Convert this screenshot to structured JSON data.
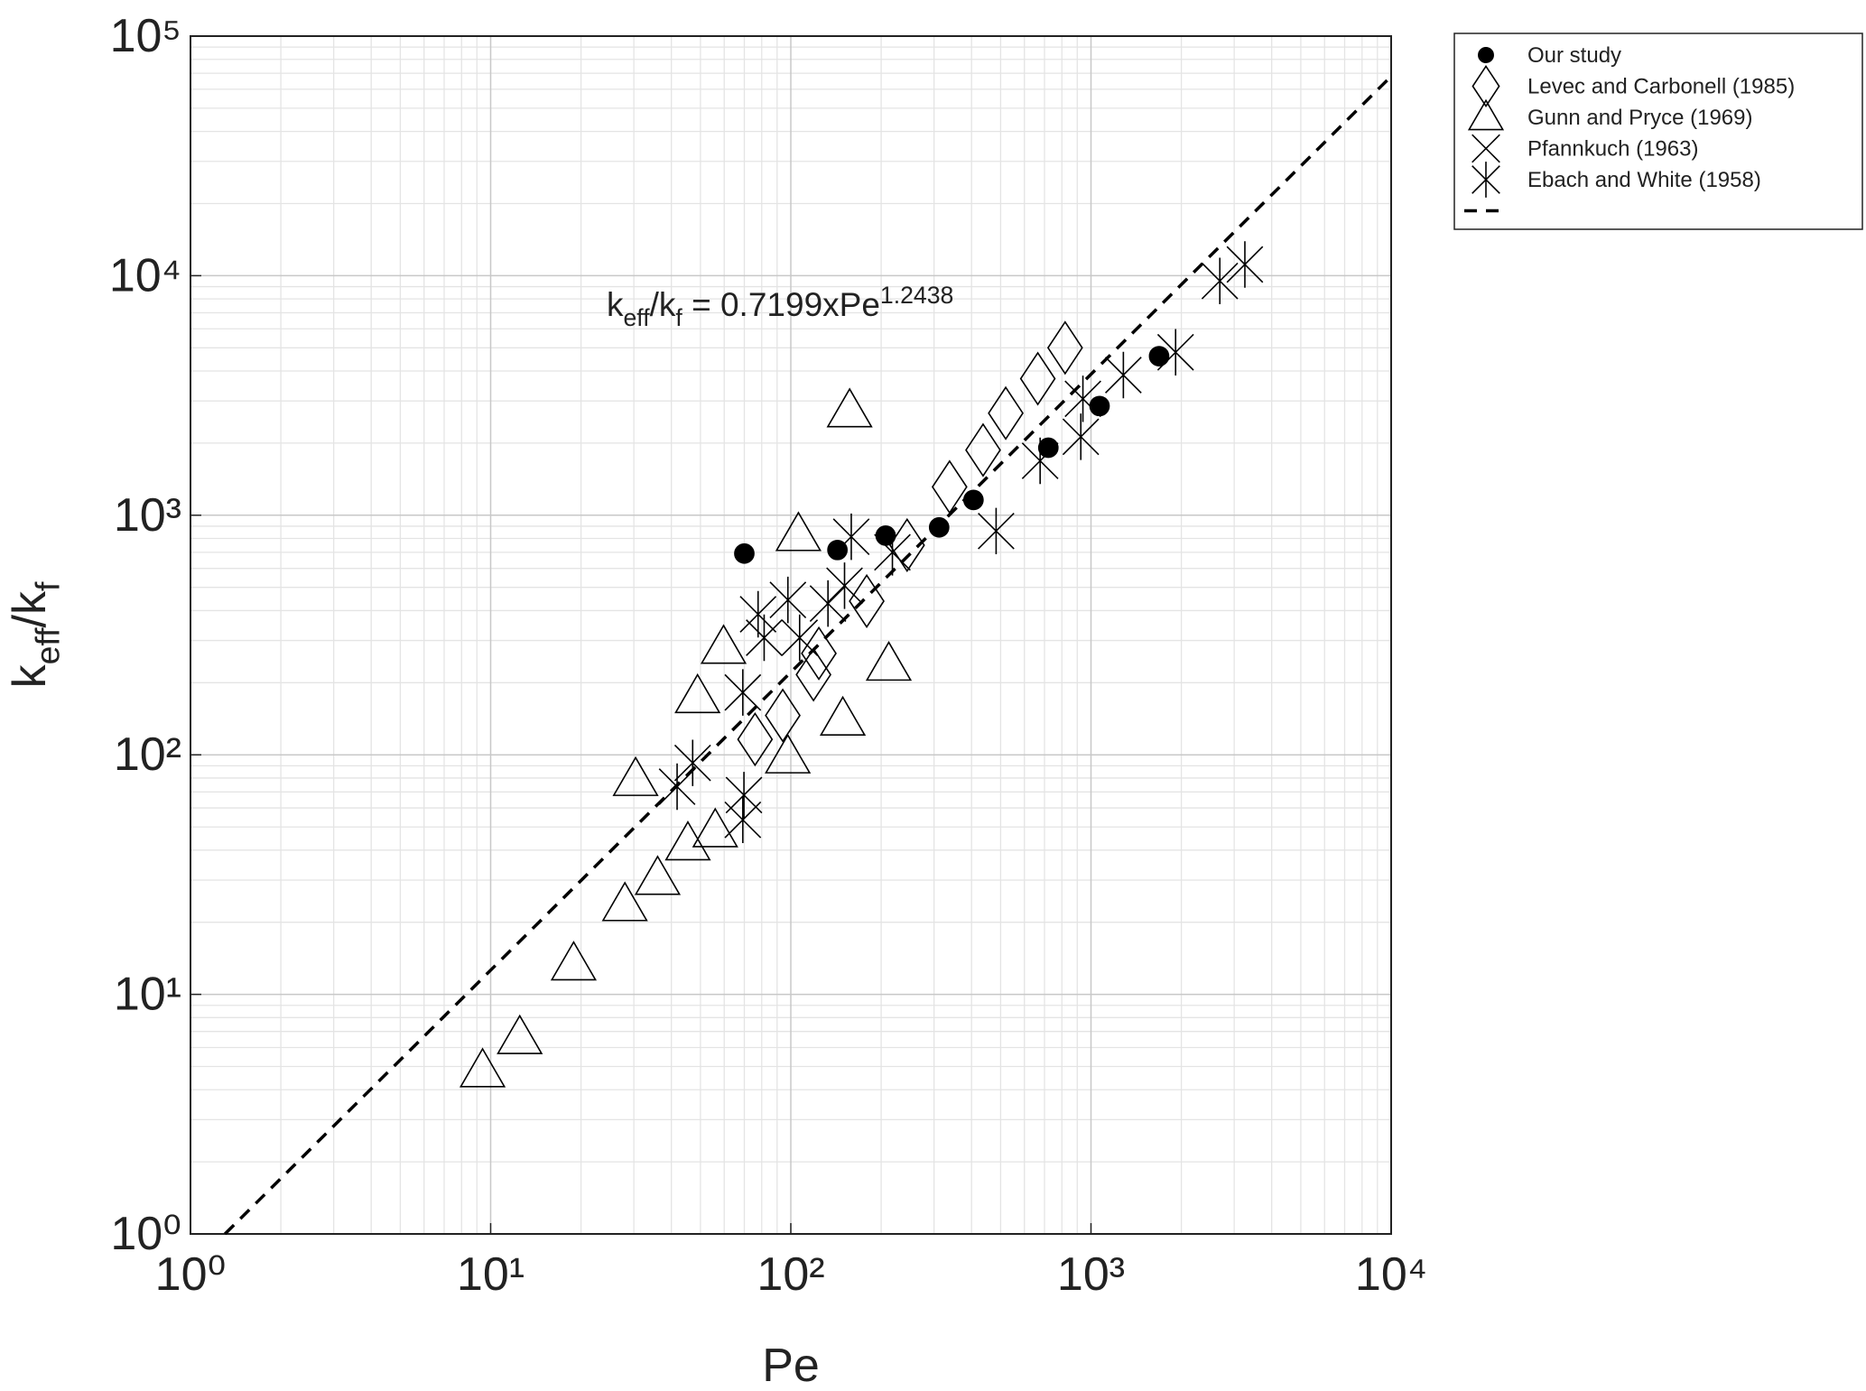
{
  "chart_data": {
    "type": "scatter",
    "xlabel": "Pe",
    "ylabel": [
      {
        "text": "k",
        "shift": "base"
      },
      {
        "text": "eff",
        "shift": "sub"
      },
      {
        "text": "/k",
        "shift": "base"
      },
      {
        "text": "f",
        "shift": "sub"
      }
    ],
    "annotation": [
      {
        "text": "k",
        "shift": "base"
      },
      {
        "text": "eff",
        "shift": "sub"
      },
      {
        "text": "/k",
        "shift": "base"
      },
      {
        "text": "f",
        "shift": "sub"
      },
      {
        "text": " = 0.7199xPe",
        "shift": "base"
      },
      {
        "text": "1.2438",
        "shift": "sup"
      }
    ],
    "xscale": "log",
    "yscale": "log",
    "xlim": [
      1,
      10000
    ],
    "ylim": [
      1,
      100000
    ],
    "xticks": [
      {
        "value": 1,
        "label": "10⁰"
      },
      {
        "value": 10,
        "label": "10¹"
      },
      {
        "value": 100,
        "label": "10²"
      },
      {
        "value": 1000,
        "label": "10³"
      },
      {
        "value": 10000,
        "label": "10⁴"
      }
    ],
    "yticks": [
      {
        "value": 1,
        "label": "10⁰"
      },
      {
        "value": 10,
        "label": "10¹"
      },
      {
        "value": 100,
        "label": "10²"
      },
      {
        "value": 1000,
        "label": "10³"
      },
      {
        "value": 10000,
        "label": "10⁴"
      },
      {
        "value": 100000,
        "label": "10⁵"
      }
    ],
    "grid": true,
    "minor_grid": true,
    "legend": "outside-upper-right",
    "series": [
      {
        "name": "Our study",
        "marker": "dot",
        "color": "#000000",
        "x": [
          70,
          143,
          207,
          312,
          406,
          721,
          1068,
          1686
        ],
        "values": [
          692,
          716,
          822,
          890,
          1158,
          1914,
          2857,
          4613
        ]
      },
      {
        "name": "Levec and Carbonell (1985)",
        "marker": "diamond",
        "color": "#000000",
        "x": [
          76,
          94,
          119,
          124,
          179,
          244,
          338,
          437,
          520,
          665,
          820
        ],
        "values": [
          116,
          146,
          216,
          265,
          438,
          750,
          1313,
          1871,
          2667,
          3716,
          5000
        ]
      },
      {
        "name": "Gunn and Pryce (1969)",
        "marker": "triangle",
        "color": "#000000",
        "x": [
          9.4,
          12.5,
          18.9,
          28,
          30.4,
          36,
          45.4,
          48.9,
          56,
          59.7,
          97.7,
          106,
          149,
          157,
          212
        ],
        "values": [
          4.8,
          6.6,
          13.4,
          23.7,
          78.9,
          30.5,
          42.5,
          175,
          48.2,
          281,
          98,
          831,
          141,
          2728,
          239
        ]
      },
      {
        "name": "Pfannkuch (1963)",
        "marker": "x",
        "color": "#000000",
        "x": [],
        "values": []
      },
      {
        "name": "Ebach and White (1958)",
        "marker": "asterisk",
        "color": "#000000",
        "x": [
          41.8,
          47.1,
          69.2,
          69.8,
          69.2,
          77.8,
          81.5,
          97.8,
          107,
          133,
          151,
          159,
          218,
          483,
          677,
          925,
          940,
          1282,
          1914,
          2687,
          3256
        ],
        "values": [
          73.6,
          92.5,
          53.5,
          67.9,
          182,
          386,
          308,
          443,
          308,
          428,
          508,
          813,
          700,
          859,
          1687,
          2125,
          3062,
          3847,
          4788,
          9502,
          11140
        ]
      },
      {
        "marker": "none",
        "line_style": "dashed",
        "color": "#000000",
        "x": [
          1.303,
          10000
        ],
        "values": [
          1,
          67963
        ]
      }
    ]
  }
}
